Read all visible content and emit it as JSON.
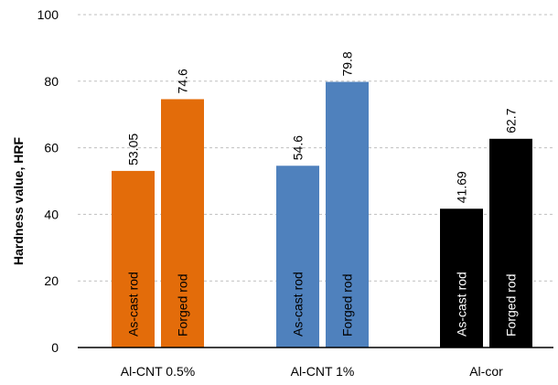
{
  "chart_data": {
    "type": "bar",
    "title": "",
    "xlabel": "",
    "ylabel": "Hardness value, HRF",
    "ylim": [
      0,
      100
    ],
    "yticks": [
      0,
      20,
      40,
      60,
      80,
      100
    ],
    "grid": true,
    "categories": [
      "Al-CNT 0.5%",
      "Al-CNT 1%",
      "Al-cor"
    ],
    "groups": [
      {
        "category": "Al-CNT 0.5%",
        "color": "#E36C0A",
        "bars": [
          {
            "label": "As-cast  rod",
            "value": 53.05,
            "value_label": "53.05"
          },
          {
            "label": "Forged  rod",
            "value": 74.6,
            "value_label": "74.6"
          }
        ]
      },
      {
        "category": "Al-CNT 1%",
        "color": "#4F81BD",
        "bars": [
          {
            "label": "As-cast  rod",
            "value": 54.6,
            "value_label": "54.6"
          },
          {
            "label": "Forged  rod",
            "value": 79.8,
            "value_label": "79.8"
          }
        ]
      },
      {
        "category": "Al-cor",
        "color": "#000000",
        "bars": [
          {
            "label": "As-cast  rod",
            "value": 41.69,
            "value_label": "41.69"
          },
          {
            "label": "Forged  rod",
            "value": 62.7,
            "value_label": "62.7"
          }
        ]
      }
    ],
    "colors": {
      "gridline": "#BFBFBF",
      "axis": "#000000",
      "text": "#000000",
      "inbar_text_on_dark": "#FFFFFF"
    }
  }
}
